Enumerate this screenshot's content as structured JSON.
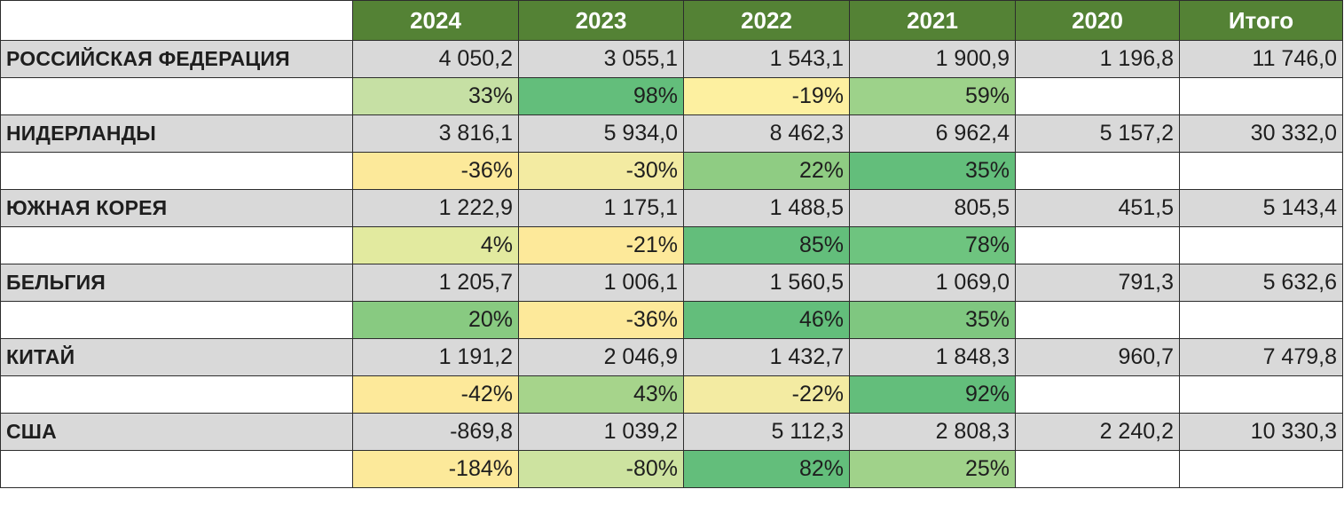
{
  "chart_data": {
    "type": "table",
    "columns": [
      "",
      "2024",
      "2023",
      "2022",
      "2021",
      "2020",
      "Итого"
    ],
    "rows": [
      {
        "country": "РОССИЙСКАЯ ФЕДЕРАЦИЯ",
        "values": [
          "4 050,2",
          "3 055,1",
          "1 543,1",
          "1 900,9",
          "1 196,8",
          "11 746,0"
        ],
        "changes": [
          {
            "text": "33%",
            "value": 33,
            "color": "#c6e0a4"
          },
          {
            "text": "98%",
            "value": 98,
            "color": "#63be7b"
          },
          {
            "text": "-19%",
            "value": -19,
            "color": "#fdf0a0"
          },
          {
            "text": "59%",
            "value": 59,
            "color": "#9dd28a"
          }
        ]
      },
      {
        "country": "НИДЕРЛАНДЫ",
        "values": [
          "3 816,1",
          "5 934,0",
          "8 462,3",
          "6 962,4",
          "5 157,2",
          "30 332,0"
        ],
        "changes": [
          {
            "text": "-36%",
            "value": -36,
            "color": "#fce99a"
          },
          {
            "text": "-30%",
            "value": -30,
            "color": "#f3eba2"
          },
          {
            "text": "22%",
            "value": 22,
            "color": "#8fcc83"
          },
          {
            "text": "35%",
            "value": 35,
            "color": "#63be7b"
          }
        ]
      },
      {
        "country": "ЮЖНАЯ КОРЕЯ",
        "values": [
          "1 222,9",
          "1 175,1",
          "1 488,5",
          "805,5",
          "451,5",
          "5 143,4"
        ],
        "changes": [
          {
            "text": "4%",
            "value": 4,
            "color": "#e2ea9f"
          },
          {
            "text": "-21%",
            "value": -21,
            "color": "#fde99a"
          },
          {
            "text": "85%",
            "value": 85,
            "color": "#63be7b"
          },
          {
            "text": "78%",
            "value": 78,
            "color": "#6ec47f"
          }
        ]
      },
      {
        "country": "БЕЛЬГИЯ",
        "values": [
          "1 205,7",
          "1 006,1",
          "1 560,5",
          "1 069,0",
          "791,3",
          "5 632,6"
        ],
        "changes": [
          {
            "text": "20%",
            "value": 20,
            "color": "#88ca81"
          },
          {
            "text": "-36%",
            "value": -36,
            "color": "#fde99a"
          },
          {
            "text": "46%",
            "value": 46,
            "color": "#63be7b"
          },
          {
            "text": "35%",
            "value": 35,
            "color": "#7fc780"
          }
        ]
      },
      {
        "country": "КИТАЙ",
        "values": [
          "1 191,2",
          "2 046,9",
          "1 432,7",
          "1 848,3",
          "960,7",
          "7 479,8"
        ],
        "changes": [
          {
            "text": "-42%",
            "value": -42,
            "color": "#fde99a"
          },
          {
            "text": "43%",
            "value": 43,
            "color": "#a6d48b"
          },
          {
            "text": "-22%",
            "value": -22,
            "color": "#f3eba2"
          },
          {
            "text": "92%",
            "value": 92,
            "color": "#63be7b"
          }
        ]
      },
      {
        "country": "США",
        "values": [
          "-869,8",
          "1 039,2",
          "5 112,3",
          "2 808,3",
          "2 240,2",
          "10 330,3"
        ],
        "changes": [
          {
            "text": "-184%",
            "value": -184,
            "color": "#fce99a"
          },
          {
            "text": "-80%",
            "value": -80,
            "color": "#cde3a0"
          },
          {
            "text": "82%",
            "value": 82,
            "color": "#63be7b"
          },
          {
            "text": "25%",
            "value": 25,
            "color": "#a0d28a"
          }
        ]
      }
    ]
  }
}
